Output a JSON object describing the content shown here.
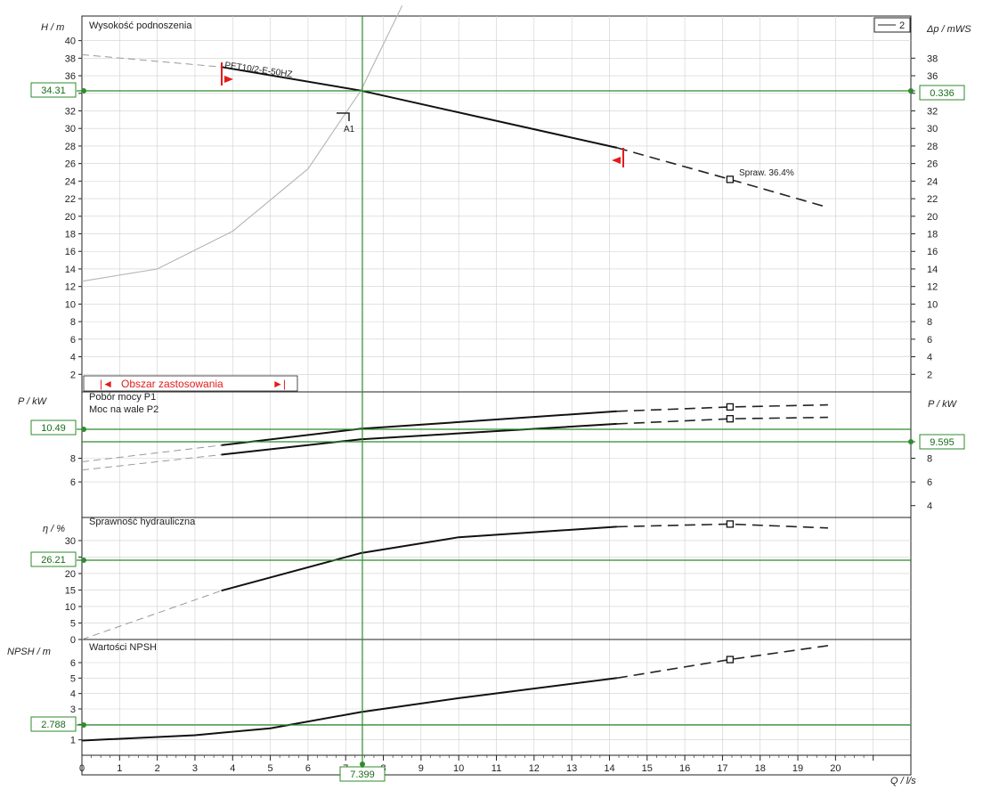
{
  "chart_data": [
    {
      "type": "line",
      "panel": "head",
      "title": "Wysokość podnoszenia",
      "ylabel": "H / m",
      "ylabel_right": "Δp / mWS",
      "xlabel": "Q / l/s",
      "xlim": [
        0,
        22
      ],
      "ylim": [
        0,
        42
      ],
      "yticks": [
        2,
        4,
        6,
        8,
        10,
        12,
        14,
        16,
        18,
        20,
        22,
        24,
        26,
        28,
        30,
        32,
        34,
        36,
        38,
        40
      ],
      "yticks_right": [
        2,
        4,
        6,
        8,
        10,
        12,
        14,
        16,
        18,
        20,
        22,
        24,
        26,
        28,
        30,
        32,
        34,
        36,
        38
      ],
      "series": [
        {
          "name": "PET10/2-E-50HZ",
          "x": [
            3.7,
            7.4,
            14.2
          ],
          "y": [
            37.0,
            34.31,
            27.8
          ]
        },
        {
          "name": "",
          "style": "dashed",
          "x": [
            14.2,
            17.2,
            19.8
          ],
          "y": [
            27.8,
            24.2,
            21.0
          ]
        },
        {
          "name": "",
          "style": "dashed",
          "x": [
            0,
            3.7
          ],
          "y": [
            38.4,
            37.0
          ]
        },
        {
          "name": "",
          "style": "system",
          "x": [
            0,
            2,
            4,
            6,
            7.4,
            8.5
          ],
          "y": [
            12.6,
            14.0,
            18.3,
            25.4,
            34.3,
            44.0
          ]
        }
      ],
      "annotations": {
        "efficiency_label": "Spraw.  36.4%",
        "operating_point": "A1",
        "range_label": "Obszar zastosowania",
        "legend": "2",
        "value_left": "34.31",
        "value_right": "0.336"
      }
    },
    {
      "type": "line",
      "panel": "power",
      "title": "Pobór mocy P1",
      "title2": "Moc na wale P2",
      "ylabel": "P / kW",
      "ylabel_right": "P / kW",
      "yticks": [
        6,
        8
      ],
      "yticks_right": [
        4,
        6,
        8
      ],
      "series": [
        {
          "name": "Pobór mocy P1",
          "x": [
            3.7,
            7.4,
            14.2
          ],
          "y": [
            9.1,
            10.49,
            11.96
          ]
        },
        {
          "name": "",
          "style": "dashed",
          "x": [
            14.2,
            17.2,
            19.8
          ],
          "y": [
            11.96,
            12.33,
            12.5
          ]
        },
        {
          "name": "",
          "style": "dashed",
          "x": [
            0,
            3.7
          ],
          "y": [
            7.7,
            9.1
          ]
        },
        {
          "name": "Moc na wale P2",
          "x": [
            3.7,
            7.4,
            14.2
          ],
          "y": [
            8.3,
            9.6,
            10.9
          ]
        },
        {
          "name": "",
          "style": "dashed",
          "x": [
            14.2,
            17.2,
            19.8
          ],
          "y": [
            10.9,
            11.33,
            11.45
          ]
        },
        {
          "name": "",
          "style": "dashed",
          "x": [
            0,
            3.7
          ],
          "y": [
            7.0,
            8.3
          ]
        }
      ],
      "annotations": {
        "value_left": "10.49",
        "value_right": "9.595"
      }
    },
    {
      "type": "line",
      "panel": "efficiency",
      "title": "Sprawność hydrauliczna",
      "ylabel": "η / %",
      "yticks": [
        0,
        5,
        10,
        15,
        20,
        25,
        30
      ],
      "series": [
        {
          "name": "Sprawność hydrauliczna",
          "x": [
            3.7,
            7.4,
            10,
            14.2
          ],
          "y": [
            14.8,
            26.21,
            31.0,
            34.2
          ]
        },
        {
          "name": "",
          "style": "dashed",
          "x": [
            14.2,
            17.2,
            19.8
          ],
          "y": [
            34.2,
            35.0,
            33.8
          ]
        },
        {
          "name": "",
          "style": "dashed",
          "x": [
            0,
            3.7
          ],
          "y": [
            0,
            14.8
          ]
        }
      ],
      "annotations": {
        "value_left": "26.21"
      }
    },
    {
      "type": "line",
      "panel": "npsh",
      "title": "Wartości NPSH",
      "ylabel": "NPSH / m",
      "xlabel": "Q / l/s",
      "yticks": [
        1,
        2,
        3,
        4,
        5,
        6
      ],
      "xticks": [
        0,
        1,
        2,
        3,
        4,
        5,
        6,
        7,
        8,
        9,
        10,
        11,
        12,
        13,
        14,
        15,
        16,
        17,
        18,
        19,
        20
      ],
      "series": [
        {
          "name": "Wartości NPSH",
          "x": [
            0,
            3,
            5,
            7.4,
            10,
            14.2
          ],
          "y": [
            0.95,
            1.3,
            1.75,
            2.8,
            3.7,
            5.0
          ]
        },
        {
          "name": "",
          "style": "dashed",
          "x": [
            14.2,
            17.2,
            19.8
          ],
          "y": [
            5.0,
            6.2,
            7.1
          ]
        }
      ],
      "annotations": {
        "value_left": "2.788",
        "value_bottom": "7.399"
      }
    }
  ]
}
